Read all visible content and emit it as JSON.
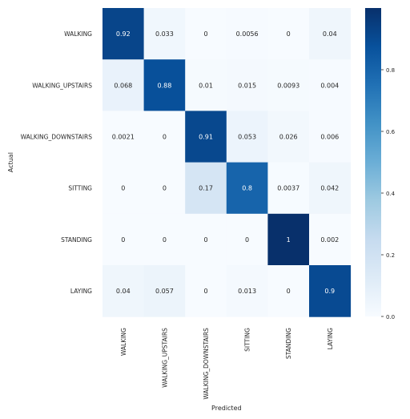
{
  "chart_data": {
    "type": "heatmap",
    "xlabel": "Predicted",
    "ylabel": "Actual",
    "categories": [
      "WALKING",
      "WALKING_UPSTAIRS",
      "WALKING_DOWNSTAIRS",
      "SITTING",
      "STANDING",
      "LAYING"
    ],
    "row_labels": [
      "WALKING",
      "WALKING_UPSTAIRS",
      "WALKING_DOWNSTAIRS",
      "SITTING",
      "STANDING",
      "LAYING"
    ],
    "col_labels": [
      "WALKING",
      "WALKING_UPSTAIRS",
      "WALKING_DOWNSTAIRS",
      "SITTING",
      "STANDING",
      "LAYING"
    ],
    "values": [
      [
        0.92,
        0.033,
        0,
        0.0056,
        0,
        0.04
      ],
      [
        0.068,
        0.88,
        0.01,
        0.015,
        0.0093,
        0.004
      ],
      [
        0.0021,
        0,
        0.91,
        0.053,
        0.026,
        0.006
      ],
      [
        0,
        0,
        0.17,
        0.8,
        0.0037,
        0.042
      ],
      [
        0,
        0,
        0,
        0,
        1,
        0.002
      ],
      [
        0.04,
        0.057,
        0,
        0.013,
        0,
        0.9
      ]
    ],
    "value_labels": [
      [
        "0.92",
        "0.033",
        "0",
        "0.0056",
        "0",
        "0.04"
      ],
      [
        "0.068",
        "0.88",
        "0.01",
        "0.015",
        "0.0093",
        "0.004"
      ],
      [
        "0.0021",
        "0",
        "0.91",
        "0.053",
        "0.026",
        "0.006"
      ],
      [
        "0",
        "0",
        "0.17",
        "0.8",
        "0.0037",
        "0.042"
      ],
      [
        "0",
        "0",
        "0",
        "0",
        "1",
        "0.002"
      ],
      [
        "0.04",
        "0.057",
        "0",
        "0.013",
        "0",
        "0.9"
      ]
    ],
    "colormap": "Blues",
    "colorbar": {
      "range": [
        0,
        1
      ],
      "ticks": [
        0.0,
        0.2,
        0.4,
        0.6,
        0.8
      ],
      "tick_labels": [
        "0.0",
        "0.2",
        "0.4",
        "0.6",
        "0.8"
      ]
    },
    "grid": false
  }
}
